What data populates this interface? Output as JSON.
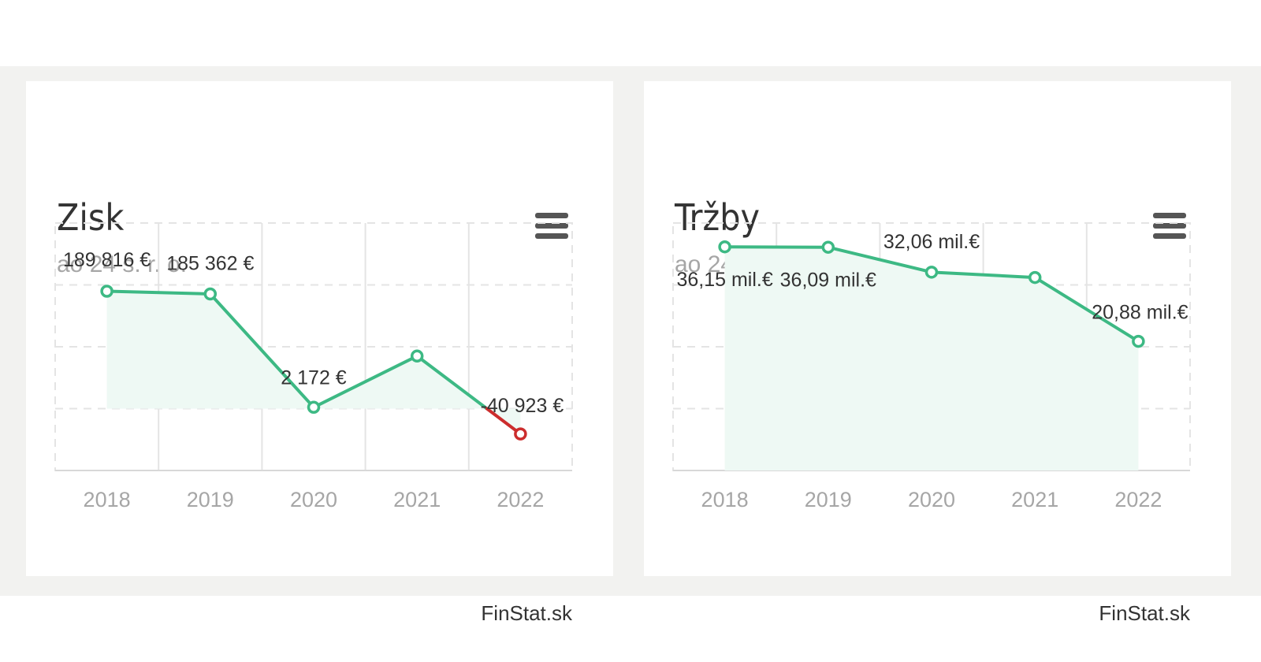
{
  "colors": {
    "line": "#3db984",
    "area": "#eef9f4",
    "negative": "#cc2d2d",
    "grid": "#e4e4e4"
  },
  "cards": [
    {
      "title": "Zisk",
      "subtitle": "ao 24 s. r. o.",
      "menu_icon": "hamburger-menu-icon",
      "credit": "FinStat.sk"
    },
    {
      "title": "Tržby",
      "subtitle": "ao 24 s. r. o.",
      "menu_icon": "hamburger-menu-icon",
      "credit": "FinStat.sk"
    }
  ],
  "chart_data": [
    {
      "type": "line",
      "title": "Zisk",
      "subtitle": "ao 24 s. r. o.",
      "x": [
        "2018",
        "2019",
        "2020",
        "2021",
        "2022"
      ],
      "values": [
        189816,
        185362,
        2172,
        85000,
        -40923
      ],
      "labels": [
        "189 816 €",
        "185 362 €",
        "2 172 €",
        "",
        "-40 923 €"
      ],
      "ylim": [
        -100000,
        300000
      ],
      "grid": true,
      "area_fill": true,
      "negative_color": true
    },
    {
      "type": "line",
      "title": "Tržby",
      "subtitle": "ao 24 s. r. o.",
      "x": [
        "2018",
        "2019",
        "2020",
        "2021",
        "2022"
      ],
      "values": [
        36.15,
        36.09,
        32.06,
        31.2,
        20.88
      ],
      "labels": [
        "36,15 mil.€",
        "36,09 mil.€",
        "32,06 mil.€",
        "",
        "20,88 mil.€"
      ],
      "unit": "mil.€",
      "ylim": [
        0,
        40
      ],
      "grid": true,
      "area_fill": true
    }
  ]
}
